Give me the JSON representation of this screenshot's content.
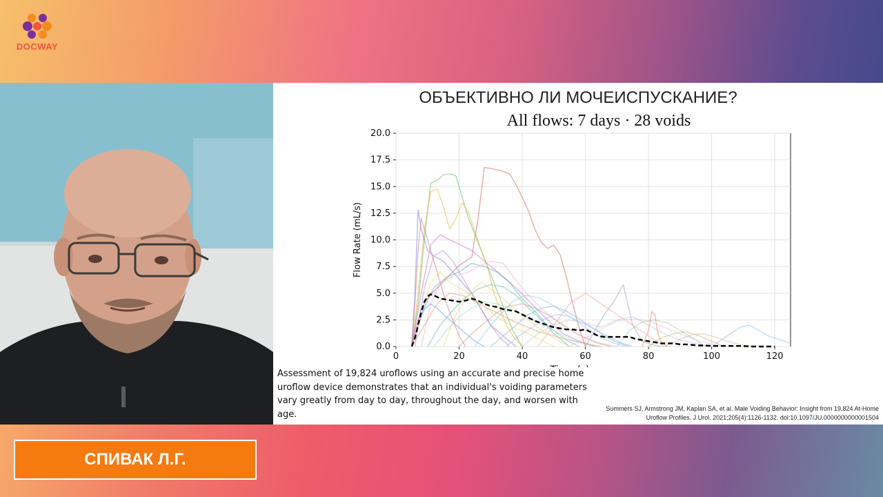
{
  "brand": {
    "logo_text": "DOCWAY",
    "logo_icon": "docway-logo-icon",
    "colors": {
      "logo_text": "#f2553f",
      "logo_mark_purple": "#7b2f9b",
      "logo_mark_orange": "#f58a1f",
      "name_plate": "#f57a10"
    }
  },
  "slide": {
    "title": "ОБЪЕКТИВНО ЛИ МОЧЕИСПУСКАНИЕ?",
    "caption": "Assessment of 19,824 uroflows using an accurate and precise home uroflow device demonstrates that an individual's voiding parameters vary greatly from day to day, throughout the day, and worsen with age.",
    "citation": "Summers SJ, Armstrong JM, Kaplan SA, et al. Male Voiding Behavior: Insight from 19,824 At-Home Uroflow Profiles. J Urol. 2021;205(4):1126-1132. doi:10.1097/JU.0000000000001504"
  },
  "speaker": {
    "name": "СПИВАК Л.Г."
  },
  "chart_data": {
    "type": "line",
    "title": "All flows: 7 days · 28 voids",
    "xlabel": "Time (s)",
    "ylabel": "Flow Rate (mL/s)",
    "xlim": [
      0,
      125
    ],
    "ylim": [
      0,
      20
    ],
    "xticks": [
      "0",
      "20",
      "40",
      "60",
      "80",
      "100",
      "120"
    ],
    "yticks": [
      "0.0",
      "2.5",
      "5.0",
      "7.5",
      "10.0",
      "12.5",
      "15.0",
      "17.5",
      "20.0"
    ],
    "grid": true,
    "series": [
      {
        "color": "#e06060",
        "x": [
          5,
          6,
          8,
          10,
          12,
          14,
          16,
          18,
          20,
          22,
          24,
          26,
          28,
          30,
          33,
          36,
          38,
          40,
          42,
          44,
          46,
          48,
          50,
          52,
          54,
          56,
          58,
          60
        ],
        "y": [
          0,
          1.5,
          3.5,
          4.5,
          5.2,
          5.8,
          6.4,
          7,
          7.6,
          8,
          8.4,
          12,
          16.8,
          16.7,
          16.5,
          16.2,
          15.2,
          14,
          12.7,
          11,
          9.8,
          9.2,
          9.5,
          8.6,
          6.5,
          4,
          1.8,
          0
        ]
      },
      {
        "color": "#60c060",
        "x": [
          5,
          7,
          9,
          11,
          13,
          15,
          17,
          19,
          21,
          23,
          25,
          27,
          29,
          31,
          33,
          35,
          37,
          40
        ],
        "y": [
          0,
          4,
          10,
          15.3,
          15.6,
          16.1,
          16.2,
          16,
          14,
          12,
          10.5,
          9,
          7.5,
          6,
          4.5,
          3,
          1.5,
          0
        ]
      },
      {
        "color": "#f0b040",
        "x": [
          5,
          7,
          9,
          11,
          13,
          15,
          17,
          19,
          21,
          23,
          25,
          27,
          29,
          31,
          33,
          35,
          37,
          40
        ],
        "y": [
          0,
          5,
          11,
          14.5,
          14.8,
          13.2,
          11,
          12,
          13.5,
          12.5,
          10.8,
          9,
          7.5,
          5,
          3.5,
          2,
          1,
          0
        ]
      },
      {
        "color": "#8080e0",
        "x": [
          5,
          6,
          7,
          8,
          10,
          12,
          15,
          18,
          21,
          24,
          27,
          30,
          34,
          38
        ],
        "y": [
          0,
          5,
          12.8,
          11,
          9,
          8.5,
          8,
          7,
          6,
          5,
          3.5,
          2,
          1,
          0
        ]
      },
      {
        "color": "#d070d0",
        "x": [
          5,
          8,
          11,
          14,
          17,
          20,
          24,
          28,
          33,
          38,
          43,
          48,
          53,
          58,
          63
        ],
        "y": [
          0,
          5,
          9.5,
          10.5,
          10,
          9.6,
          9,
          8,
          6.8,
          5.5,
          4,
          2.5,
          1.2,
          0.5,
          0
        ]
      },
      {
        "color": "#50b0c0",
        "x": [
          5,
          8,
          12,
          16,
          20,
          24,
          28,
          32,
          36,
          40,
          45,
          50,
          55
        ],
        "y": [
          0,
          3,
          5.5,
          6.5,
          7,
          7.8,
          7.5,
          7,
          6,
          4.5,
          3,
          1.2,
          0
        ]
      },
      {
        "color": "#e0a060",
        "x": [
          5,
          9,
          13,
          17,
          21,
          25,
          29,
          33,
          37,
          41,
          45,
          50,
          55,
          60,
          65
        ],
        "y": [
          0,
          2,
          4,
          5,
          4.8,
          4.2,
          3.6,
          3,
          2.4,
          1.9,
          1.4,
          1,
          0.6,
          0.3,
          0
        ]
      },
      {
        "color": "#a0a0d0",
        "x": [
          60,
          63,
          66,
          69,
          72,
          75,
          78,
          81,
          84
        ],
        "y": [
          0,
          1.5,
          3,
          4.2,
          5.8,
          2,
          0.5,
          0.2,
          0
        ]
      },
      {
        "color": "#f0a0a0",
        "x": [
          45,
          50,
          55,
          60,
          65,
          70,
          75,
          80,
          85
        ],
        "y": [
          0,
          2,
          4,
          5,
          4,
          3,
          2,
          1,
          0
        ]
      },
      {
        "color": "#90c0f0",
        "x": [
          100,
          103,
          106,
          109,
          112,
          115,
          118,
          122,
          125
        ],
        "y": [
          0,
          0.6,
          1.2,
          1.8,
          2,
          1.5,
          1,
          0.6,
          0.3
        ]
      },
      {
        "color": "#c0c060",
        "x": [
          80,
          84,
          88,
          92,
          96,
          100,
          104
        ],
        "y": [
          0,
          0.8,
          1.2,
          1.4,
          1,
          0.5,
          0
        ]
      },
      {
        "color": "#a0d0a0",
        "x": [
          70,
          74,
          78,
          82,
          86,
          90,
          94,
          98
        ],
        "y": [
          0,
          1.5,
          2.3,
          2.5,
          2.2,
          1.5,
          0.8,
          0
        ]
      },
      {
        "color": "#e0e070",
        "x": [
          5,
          8,
          11,
          14,
          17,
          20,
          23,
          26,
          29,
          32,
          35,
          38,
          42,
          46,
          50
        ],
        "y": [
          0,
          3,
          6,
          7,
          6,
          5.5,
          5,
          4.2,
          3.5,
          2.8,
          2.2,
          1.7,
          1.2,
          0.6,
          0
        ]
      },
      {
        "color": "#f0b0d0",
        "x": [
          8,
          11,
          14,
          17,
          20,
          23,
          26,
          30,
          34,
          38,
          42,
          46,
          50,
          55,
          60,
          65,
          70
        ],
        "y": [
          0,
          4,
          5.8,
          6.5,
          6.7,
          7,
          7.5,
          8,
          7.8,
          6.2,
          4.8,
          3.6,
          2.6,
          1.6,
          0.8,
          0.3,
          0
        ]
      },
      {
        "color": "#70c0a0",
        "x": [
          10,
          14,
          18,
          22,
          26,
          30,
          34,
          38,
          42,
          46,
          50,
          54,
          58
        ],
        "y": [
          0,
          2,
          3.4,
          4.6,
          5.4,
          5.8,
          5.6,
          4.8,
          3.6,
          2.5,
          1.5,
          0.6,
          0
        ]
      },
      {
        "color": "#b090e0",
        "x": [
          6,
          9,
          12,
          15,
          18,
          21,
          24,
          27,
          30,
          33,
          36
        ],
        "y": [
          0,
          5.5,
          8.5,
          9,
          8,
          6.5,
          5,
          3.5,
          2,
          0.8,
          0
        ]
      },
      {
        "color": "#d0a080",
        "x": [
          20,
          24,
          28,
          32,
          36,
          40,
          44,
          48,
          52,
          56,
          60,
          64,
          68
        ],
        "y": [
          0,
          1.2,
          2.2,
          3.2,
          3.8,
          4,
          3.6,
          3,
          2.2,
          1.4,
          0.8,
          0.3,
          0
        ]
      },
      {
        "color": "#80b0e0",
        "x": [
          30,
          34,
          38,
          42,
          46,
          50,
          54,
          58,
          62,
          66,
          70,
          74
        ],
        "y": [
          0,
          1,
          2,
          3,
          3.6,
          3.8,
          3.3,
          2.6,
          1.8,
          1,
          0.4,
          0
        ]
      },
      {
        "color": "#c8c8c8",
        "x": [
          40,
          45,
          50,
          55,
          60,
          65,
          70,
          75,
          80,
          85,
          90,
          95,
          100
        ],
        "y": [
          0,
          1.2,
          2,
          2.5,
          2.2,
          1.8,
          2.5,
          2.8,
          2,
          1.2,
          0.6,
          0.3,
          0
        ]
      },
      {
        "color": "#ff8060",
        "x": [
          78,
          80,
          81,
          82,
          83,
          84,
          86
        ],
        "y": [
          0,
          1.5,
          3.3,
          3,
          1.2,
          0.4,
          0
        ]
      },
      {
        "color": "#60a0ff",
        "x": [
          5,
          7,
          9,
          11,
          13,
          15,
          17,
          19,
          21,
          23,
          25,
          28
        ],
        "y": [
          0,
          2,
          3.5,
          4,
          3.6,
          3,
          2.5,
          2,
          1.5,
          1,
          0.5,
          0
        ]
      },
      {
        "color": "#a0e0c0",
        "x": [
          12,
          16,
          20,
          24,
          28,
          32,
          36,
          40,
          44,
          48,
          52,
          56,
          60,
          64
        ],
        "y": [
          0,
          1.5,
          2.8,
          3.6,
          4.2,
          4,
          3.6,
          3,
          2.4,
          1.8,
          1.2,
          0.6,
          0.2,
          0
        ]
      },
      {
        "color": "#e0c0f0",
        "x": [
          55,
          60,
          65,
          70,
          75,
          80,
          85,
          90,
          95,
          100,
          105
        ],
        "y": [
          0,
          0.8,
          1.6,
          2.4,
          2.6,
          2.4,
          1.8,
          1.2,
          0.6,
          0.2,
          0
        ]
      },
      {
        "color": "#f0d080",
        "x": [
          15,
          19,
          23,
          27,
          31,
          35,
          39,
          43,
          47,
          51,
          55
        ],
        "y": [
          0,
          3,
          5,
          6,
          5.2,
          4.2,
          3.2,
          2.2,
          1.4,
          0.6,
          0
        ]
      },
      {
        "color": "#90d0d0",
        "x": [
          25,
          29,
          33,
          37,
          41,
          45,
          49,
          53,
          57,
          61,
          65,
          69,
          73
        ],
        "y": [
          0,
          1.6,
          3,
          4.2,
          4.8,
          4.6,
          4,
          3.2,
          2.4,
          1.6,
          0.8,
          0.3,
          0
        ]
      },
      {
        "color": "#d08080",
        "x": [
          5,
          6,
          7,
          8,
          10,
          12,
          14,
          16,
          18,
          20,
          22
        ],
        "y": [
          0,
          4,
          9,
          12,
          10,
          8,
          6,
          4,
          2.5,
          1,
          0
        ]
      },
      {
        "color": "#b0b0f0",
        "x": [
          35,
          39,
          43,
          47,
          51,
          55,
          59,
          63,
          67,
          71,
          75
        ],
        "y": [
          0,
          1,
          1.8,
          2.6,
          3,
          2.8,
          2.2,
          1.6,
          1,
          0.4,
          0
        ]
      },
      {
        "color": "#e0b0a0",
        "x": [
          85,
          88,
          91,
          94,
          97,
          100,
          103,
          106,
          110,
          114
        ],
        "y": [
          0,
          0.4,
          0.8,
          1.1,
          1.2,
          1,
          0.7,
          0.4,
          0.1,
          0
        ]
      }
    ],
    "mean_series": {
      "style": "dashed",
      "color": "#000000",
      "x": [
        5,
        6,
        7,
        8,
        9,
        10,
        11,
        12,
        14,
        16,
        18,
        20,
        22,
        24,
        26,
        28,
        30,
        32,
        34,
        36,
        38,
        40,
        42,
        44,
        46,
        48,
        50,
        52,
        54,
        56,
        58,
        60,
        62,
        64,
        66,
        68,
        70,
        72,
        74,
        76,
        78,
        80,
        82,
        84,
        86,
        88,
        90,
        92,
        94,
        96,
        98,
        100,
        102,
        104,
        106,
        108,
        110,
        112,
        114,
        116,
        118,
        120
      ],
      "y": [
        0,
        0.8,
        2,
        3.2,
        4.2,
        4.7,
        4.9,
        4.8,
        4.5,
        4.4,
        4.3,
        4.2,
        4.3,
        4.5,
        4.3,
        4,
        3.8,
        3.7,
        3.5,
        3.4,
        3.3,
        3,
        2.7,
        2.4,
        2.2,
        2,
        1.8,
        1.7,
        1.6,
        1.6,
        1.5,
        1.6,
        1.3,
        1,
        0.9,
        0.9,
        0.9,
        0.9,
        0.9,
        0.7,
        0.6,
        0.5,
        0.4,
        0.3,
        0.3,
        0.3,
        0.2,
        0.2,
        0.15,
        0.1,
        0.1,
        0.05,
        0.05,
        0.05,
        0.05,
        0.05,
        0.05,
        0,
        0,
        0,
        0,
        0
      ]
    }
  }
}
